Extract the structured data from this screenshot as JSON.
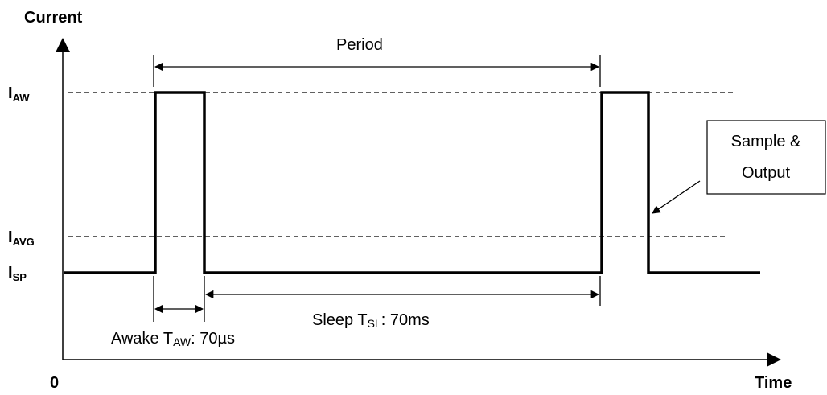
{
  "axes": {
    "y_label": "Current",
    "x_label": "Time",
    "origin": "0"
  },
  "levels": {
    "aw": {
      "main": "I",
      "sub": "AW"
    },
    "avg": {
      "main": "I",
      "sub": "AVG"
    },
    "sp": {
      "main": "I",
      "sub": "SP"
    }
  },
  "period_label": "Period",
  "sleep": {
    "prefix": "Sleep T",
    "sub": "SL",
    "suffix": ": 70ms"
  },
  "awake": {
    "prefix": "Awake T",
    "sub": "AW",
    "suffix": ": 70µs"
  },
  "callout": {
    "line1": "Sample &",
    "line2": "Output"
  }
}
